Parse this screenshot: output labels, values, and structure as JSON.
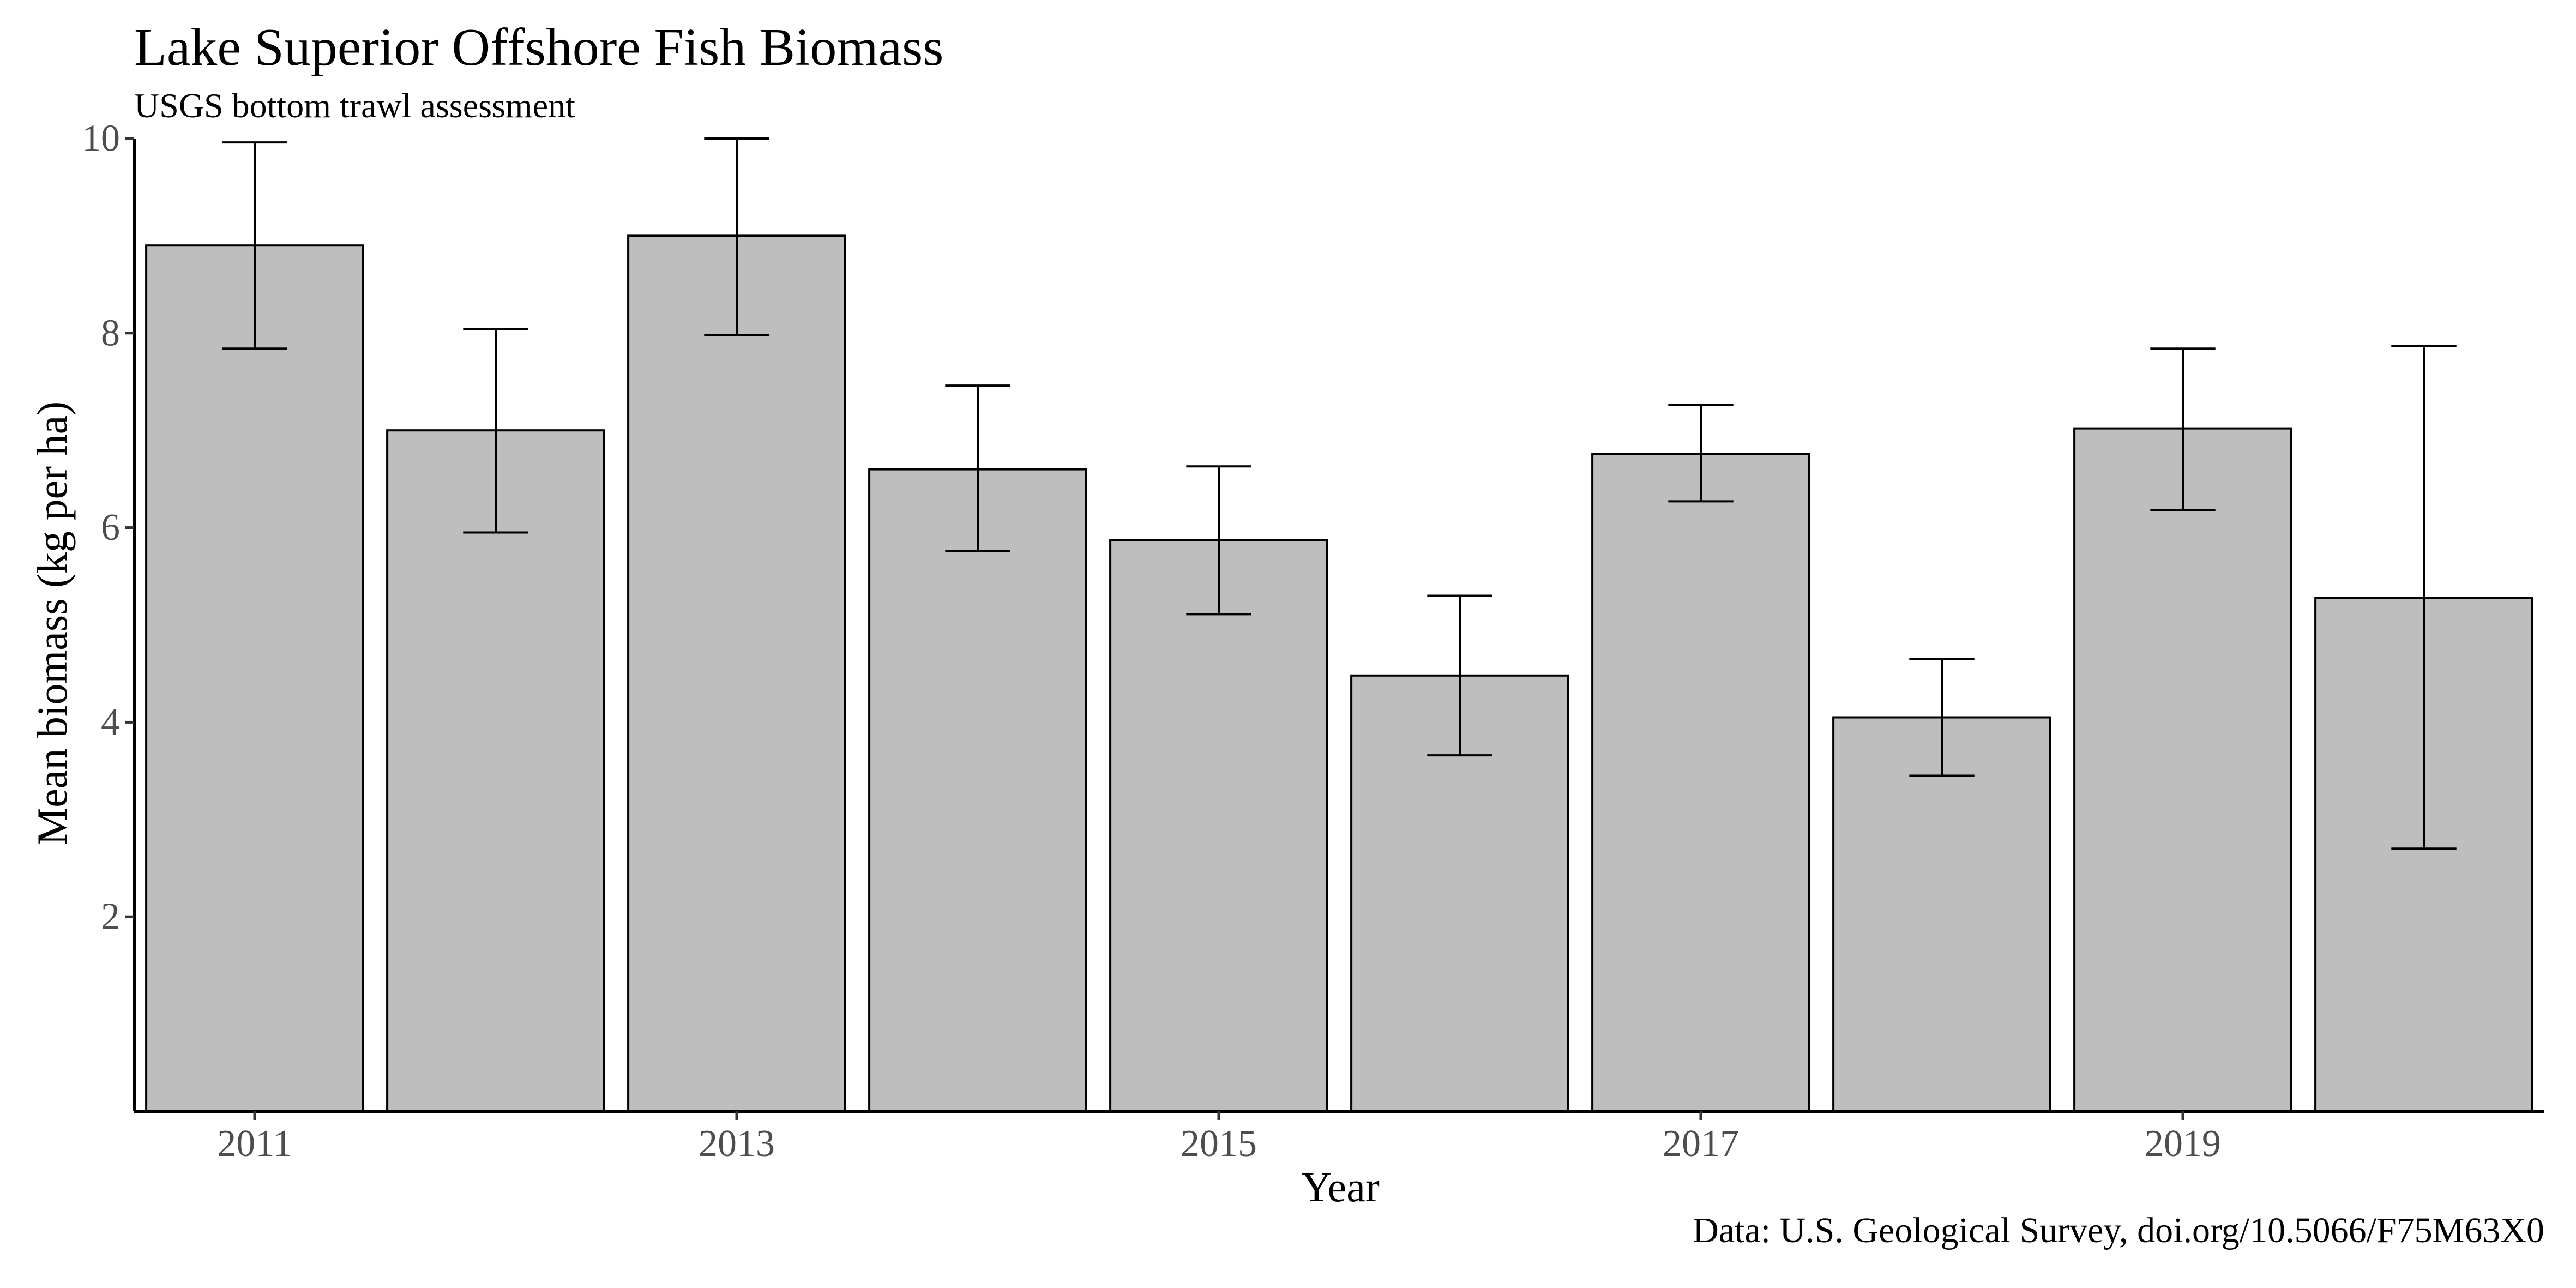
{
  "chart_data": {
    "type": "bar",
    "title": "Lake Superior Offshore Fish Biomass",
    "subtitle": "USGS bottom trawl assessment",
    "caption": "Data: U.S. Geological Survey, doi.org/10.5066/F75M63X0",
    "xlabel": "Year",
    "ylabel": "Mean biomass (kg per ha)",
    "categories": [
      "2011",
      "2012",
      "2013",
      "2014",
      "2015",
      "2016",
      "2017",
      "2018",
      "2019",
      "2020"
    ],
    "values": [
      8.9,
      7.0,
      9.0,
      6.6,
      5.87,
      4.48,
      6.76,
      4.05,
      7.02,
      5.28
    ],
    "error_low": [
      7.84,
      5.95,
      7.98,
      5.76,
      5.11,
      3.66,
      6.27,
      3.45,
      6.18,
      2.7
    ],
    "error_high": [
      9.96,
      8.04,
      10.0,
      7.46,
      6.63,
      5.3,
      7.26,
      4.65,
      7.84,
      7.87
    ],
    "xticks": [
      "2011",
      "2013",
      "2015",
      "2017",
      "2019"
    ],
    "yticks": [
      "2",
      "4",
      "6",
      "8",
      "10"
    ],
    "ylim": [
      0,
      10
    ],
    "grid": false,
    "bar_fill": "#bebebe",
    "bar_stroke": "#000000",
    "tick_label_color": "#4d4d4d"
  }
}
